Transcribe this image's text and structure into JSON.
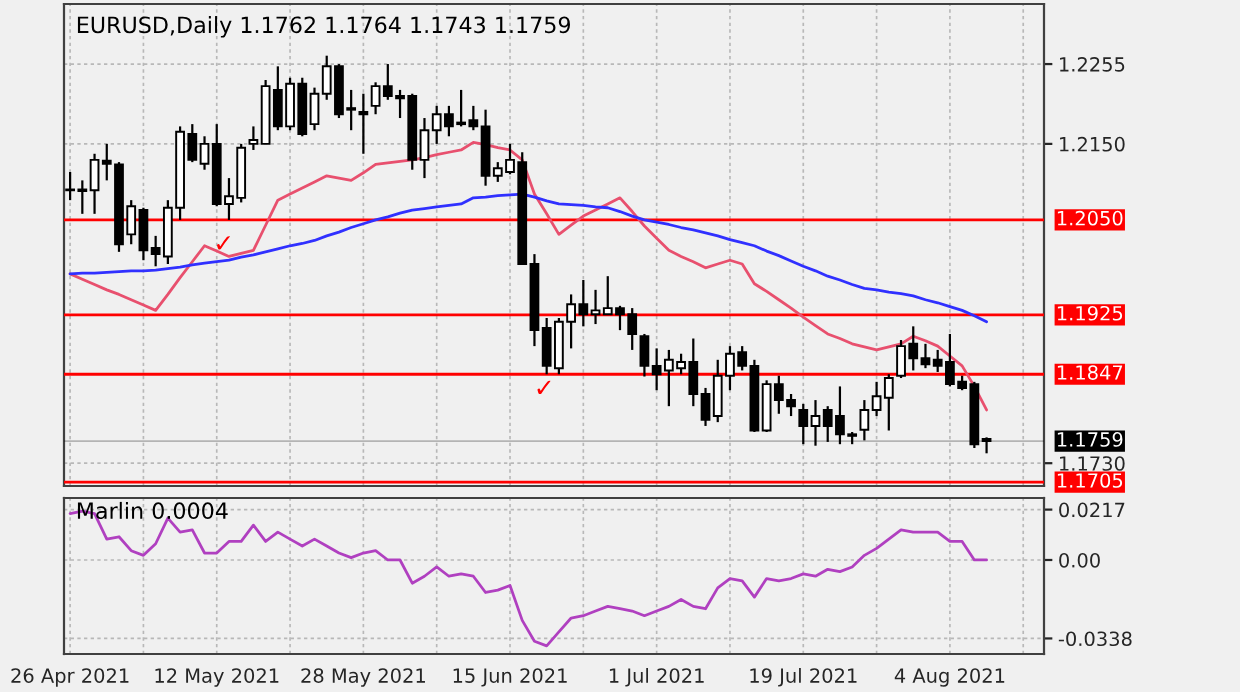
{
  "chart_data": [
    {
      "type": "candlestick",
      "title": "EURUSD,Daily 1.1762 1.1764 1.1743 1.1759",
      "categories": [
        null,
        null,
        null,
        null,
        null,
        null,
        null,
        null,
        null,
        null,
        null,
        null,
        null,
        null,
        null,
        null,
        null,
        null,
        null,
        null,
        null,
        null,
        null,
        null,
        null,
        null,
        null,
        null,
        null,
        null,
        null,
        null,
        null,
        null,
        null,
        null,
        null,
        null,
        null,
        null,
        null,
        null,
        null,
        null,
        null,
        null,
        null,
        null,
        null,
        null,
        null,
        null,
        null,
        null,
        null,
        null,
        null,
        null,
        null,
        null,
        null,
        null,
        null,
        null,
        null,
        null,
        null,
        null,
        null,
        null,
        null,
        null,
        null,
        null,
        null,
        null
      ],
      "ohlc": [
        [
          1.209,
          1.2113,
          1.2076,
          1.2089
        ],
        [
          1.209,
          1.2102,
          1.2058,
          1.2088
        ],
        [
          1.2089,
          1.2137,
          1.2058,
          1.2129
        ],
        [
          1.2128,
          1.215,
          1.2102,
          1.2124
        ],
        [
          1.2123,
          1.2126,
          1.2008,
          1.2018
        ],
        [
          1.2031,
          1.2076,
          1.2018,
          1.2068
        ],
        [
          1.2063,
          1.2066,
          1.1997,
          1.201
        ],
        [
          1.2013,
          1.2029,
          1.1989,
          1.2005
        ],
        [
          1.2002,
          1.2076,
          1.1992,
          1.2066
        ],
        [
          1.2066,
          1.2173,
          1.205,
          1.2166
        ],
        [
          1.2163,
          1.2176,
          1.2126,
          1.2129
        ],
        [
          1.2124,
          1.216,
          1.2116,
          1.215
        ],
        [
          1.215,
          1.2176,
          1.2068,
          1.2071
        ],
        [
          1.2071,
          1.2105,
          1.205,
          1.2081
        ],
        [
          1.2079,
          1.215,
          1.2073,
          1.2145
        ],
        [
          1.215,
          1.2173,
          1.2142,
          1.2155
        ],
        [
          1.215,
          1.2234,
          1.215,
          1.2226
        ],
        [
          1.2221,
          1.2252,
          1.2168,
          1.2173
        ],
        [
          1.2173,
          1.2237,
          1.2168,
          1.2229
        ],
        [
          1.2229,
          1.2237,
          1.216,
          1.2163
        ],
        [
          1.2176,
          1.2224,
          1.2168,
          1.2216
        ],
        [
          1.2216,
          1.2266,
          1.2208,
          1.2252
        ],
        [
          1.2252,
          1.2255,
          1.2184,
          1.2189
        ],
        [
          1.2195,
          1.2221,
          1.2168,
          1.2197
        ],
        [
          1.2192,
          1.2216,
          1.2137,
          1.2189
        ],
        [
          1.22,
          1.2231,
          1.2189,
          1.2226
        ],
        [
          1.2226,
          1.2255,
          1.2208,
          1.2213
        ],
        [
          1.2213,
          1.2221,
          1.2184,
          1.221
        ],
        [
          1.2213,
          1.2216,
          1.2116,
          1.2129
        ],
        [
          1.2129,
          1.2184,
          1.2105,
          1.2168
        ],
        [
          1.2168,
          1.22,
          1.215,
          1.2189
        ],
        [
          1.2189,
          1.22,
          1.216,
          1.2173
        ],
        [
          1.2176,
          1.2221,
          1.2173,
          1.2178
        ],
        [
          1.2181,
          1.22,
          1.2168,
          1.2173
        ],
        [
          1.2173,
          1.2195,
          1.2095,
          1.2108
        ],
        [
          1.2108,
          1.2126,
          1.21,
          1.2118
        ],
        [
          1.2113,
          1.215,
          1.211,
          1.2129
        ],
        [
          1.2126,
          1.2139,
          1.1992,
          1.1992
        ],
        [
          1.1992,
          1.2005,
          1.1884,
          1.1905
        ],
        [
          1.1908,
          1.1921,
          1.1847,
          1.1858
        ],
        [
          1.1855,
          1.1921,
          1.1847,
          1.1916
        ],
        [
          1.1916,
          1.1952,
          1.1881,
          1.1939
        ],
        [
          1.1939,
          1.1971,
          1.191,
          1.1926
        ],
        [
          1.1926,
          1.1958,
          1.1913,
          1.1931
        ],
        [
          1.1926,
          1.1976,
          1.1926,
          1.1934
        ],
        [
          1.1934,
          1.1937,
          1.1905,
          1.1926
        ],
        [
          1.1926,
          1.1934,
          1.1879,
          1.19
        ],
        [
          1.1897,
          1.19,
          1.1844,
          1.1858
        ],
        [
          1.1858,
          1.1881,
          1.1826,
          1.1847
        ],
        [
          1.1852,
          1.1879,
          1.1805,
          1.1866
        ],
        [
          1.1855,
          1.1874,
          1.1847,
          1.1863
        ],
        [
          1.1863,
          1.1894,
          1.1805,
          1.1821
        ],
        [
          1.1821,
          1.1829,
          1.1779,
          1.1787
        ],
        [
          1.1792,
          1.1866,
          1.1784,
          1.1845
        ],
        [
          1.1845,
          1.1884,
          1.1826,
          1.1874
        ],
        [
          1.1876,
          1.1884,
          1.1852,
          1.1858
        ],
        [
          1.1858,
          1.1866,
          1.1771,
          1.1773
        ],
        [
          1.1773,
          1.1839,
          1.1771,
          1.1834
        ],
        [
          1.1834,
          1.1845,
          1.1795,
          1.1813
        ],
        [
          1.1813,
          1.1821,
          1.1792,
          1.1805
        ],
        [
          1.18,
          1.1808,
          1.1755,
          1.1779
        ],
        [
          1.1779,
          1.1813,
          1.1753,
          1.1792
        ],
        [
          1.18,
          1.1805,
          1.1758,
          1.1779
        ],
        [
          1.1792,
          1.1831,
          1.1755,
          1.1768
        ],
        [
          1.1768,
          1.1771,
          1.1755,
          1.1766
        ],
        [
          1.1774,
          1.1813,
          1.176,
          1.18
        ],
        [
          1.18,
          1.1837,
          1.1792,
          1.1818
        ],
        [
          1.1816,
          1.1847,
          1.1773,
          1.1842
        ],
        [
          1.1845,
          1.1892,
          1.1842,
          1.1884
        ],
        [
          1.1887,
          1.191,
          1.1852,
          1.1868
        ],
        [
          1.1868,
          1.1887,
          1.1855,
          1.186
        ],
        [
          1.1866,
          1.1879,
          1.185,
          1.1858
        ],
        [
          1.1863,
          1.19,
          1.1831,
          1.1834
        ],
        [
          1.1837,
          1.1845,
          1.1826,
          1.1829
        ],
        [
          1.1834,
          1.1837,
          1.175,
          1.1755
        ],
        [
          1.1762,
          1.1764,
          1.1743,
          1.1759
        ]
      ],
      "series": [
        {
          "type": "line",
          "color": "#e8506e",
          "values": [
            1.1979,
            1.1972,
            1.1965,
            1.1958,
            1.1952,
            1.1945,
            1.1938,
            1.1931,
            1.1952,
            1.1974,
            1.1995,
            1.2016,
            1.2009,
            1.2002,
            1.2006,
            1.201,
            1.2043,
            1.2076,
            1.2084,
            1.2092,
            1.21,
            1.2108,
            1.2105,
            1.2102,
            1.2112,
            1.2123,
            1.2125,
            1.2127,
            1.2129,
            1.2132,
            1.2136,
            1.2139,
            1.2142,
            1.2152,
            1.2149,
            1.2145,
            1.2142,
            1.2129,
            1.2084,
            1.2058,
            1.2031,
            1.2043,
            1.2055,
            1.2063,
            1.2071,
            1.2079,
            1.2061,
            1.2042,
            1.2026,
            1.201,
            1.2002,
            1.1995,
            1.1987,
            1.1992,
            1.1997,
            1.1992,
            1.1966,
            1.1956,
            1.1945,
            1.1934,
            1.1922,
            1.1911,
            1.19,
            1.1894,
            1.1887,
            1.1883,
            1.1879,
            1.1883,
            1.1887,
            1.1897,
            1.1891,
            1.1884,
            1.1871,
            1.1858,
            1.1831,
            1.18
          ]
        },
        {
          "type": "line",
          "color": "#3030ff",
          "values": [
            1.1979,
            1.198,
            1.198,
            1.1981,
            1.1982,
            1.1983,
            1.1983,
            1.1984,
            1.1986,
            1.1988,
            1.1991,
            1.1993,
            1.1995,
            1.1997,
            1.2001,
            1.2004,
            1.2008,
            1.2012,
            1.2016,
            1.2019,
            1.2023,
            1.2029,
            1.2034,
            1.204,
            1.2045,
            1.205,
            1.2054,
            1.2059,
            1.2063,
            1.2065,
            1.2067,
            1.2069,
            1.2071,
            1.2079,
            1.208,
            1.2082,
            1.2083,
            1.2084,
            1.208,
            1.2075,
            1.2071,
            1.207,
            1.2069,
            1.2067,
            1.2066,
            1.2061,
            1.2055,
            1.205,
            1.2047,
            1.2044,
            1.204,
            1.2037,
            1.2033,
            1.2029,
            1.2024,
            1.202,
            1.2016,
            1.2009,
            1.2003,
            1.1996,
            1.1989,
            1.1983,
            1.1976,
            1.1971,
            1.1965,
            1.196,
            1.1958,
            1.1955,
            1.1953,
            1.195,
            1.1945,
            1.1941,
            1.1936,
            1.1931,
            1.1924,
            1.1916
          ]
        }
      ],
      "ref_lines": [
        {
          "axis": "y",
          "value": 1.205,
          "label": "1.2050",
          "color": "#ff0000"
        },
        {
          "axis": "y",
          "value": 1.1925,
          "label": "1.1925",
          "color": "#ff0000"
        },
        {
          "axis": "y",
          "value": 1.1847,
          "label": "1.1847",
          "color": "#ff0000"
        },
        {
          "axis": "y",
          "value": 1.1759,
          "label": "1.1759",
          "color": "#000000"
        },
        {
          "axis": "y",
          "value": 1.1705,
          "label": "1.1705",
          "color": "#ff0000"
        }
      ],
      "annotations": [
        "✓",
        "✓"
      ],
      "ylim": [
        1.17,
        1.2334
      ],
      "yticks": [
        1.2255,
        {
          "value": 1.215,
          "label": "1.2150"
        },
        {
          "value": 1.173,
          "label": "1.1730"
        }
      ],
      "tick_labels": "y",
      "grid": true,
      "legend": false
    },
    {
      "type": "line",
      "title": "Marlin 0.0004",
      "categories": [
        "26 Apr 2021",
        null,
        null,
        null,
        null,
        null,
        null,
        null,
        null,
        null,
        null,
        null,
        "12 May 2021",
        null,
        null,
        null,
        null,
        null,
        null,
        null,
        null,
        null,
        null,
        null,
        "28 May 2021",
        null,
        null,
        null,
        null,
        null,
        null,
        null,
        null,
        null,
        null,
        null,
        "15 Jun 2021",
        null,
        null,
        null,
        null,
        null,
        null,
        null,
        null,
        null,
        null,
        null,
        "1 Jul 2021",
        null,
        null,
        null,
        null,
        null,
        null,
        null,
        null,
        null,
        null,
        null,
        "19 Jul 2021",
        null,
        null,
        null,
        null,
        null,
        null,
        null,
        null,
        null,
        null,
        null,
        "4 Aug 2021",
        null,
        null,
        null
      ],
      "series": [
        {
          "color": "#b040c0",
          "values": [
            0.02,
            0.021,
            0.02,
            0.009,
            0.01,
            0.004,
            0.002,
            0.007,
            0.018,
            0.012,
            0.013,
            0.003,
            0.003,
            0.008,
            0.008,
            0.015,
            0.008,
            0.012,
            0.009,
            0.006,
            0.009,
            0.006,
            0.003,
            0.001,
            0.003,
            0.004,
            0.0,
            0.0,
            -0.01,
            -0.007,
            -0.003,
            -0.007,
            -0.006,
            -0.007,
            -0.014,
            -0.013,
            -0.011,
            -0.026,
            -0.035,
            -0.037,
            -0.031,
            -0.025,
            -0.024,
            -0.022,
            -0.02,
            -0.021,
            -0.022,
            -0.024,
            -0.022,
            -0.02,
            -0.017,
            -0.02,
            -0.021,
            -0.012,
            -0.008,
            -0.009,
            -0.016,
            -0.008,
            -0.009,
            -0.008,
            -0.006,
            -0.007,
            -0.004,
            -0.005,
            -0.003,
            0.002,
            0.005,
            0.009,
            0.013,
            0.012,
            0.012,
            0.012,
            0.008,
            0.008,
            0.0,
            0.0
          ]
        }
      ],
      "ylim": [
        -0.0405,
        0.0267
      ],
      "yticks": [
        0.0217,
        {
          "value": 0,
          "label": "0.00"
        },
        {
          "value": -0.0338,
          "label": "-0.0338"
        }
      ],
      "grid": true,
      "legend": false
    }
  ]
}
